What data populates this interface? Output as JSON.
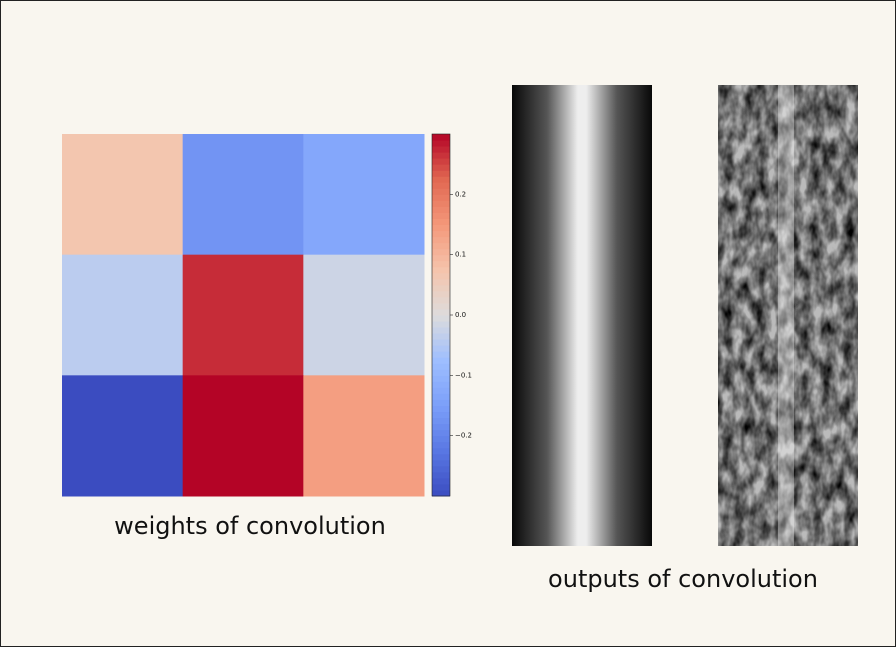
{
  "chart_data": {
    "type": "heatmap",
    "cmap": "coolwarm",
    "values": [
      [
        0.07,
        -0.17,
        -0.13
      ],
      [
        -0.04,
        0.27,
        -0.02
      ],
      [
        -0.3,
        0.3,
        0.14
      ]
    ],
    "clim": [
      -0.3,
      0.3
    ],
    "colorbar_ticks": [
      {
        "value": -0.2,
        "label": "−0.2"
      },
      {
        "value": -0.1,
        "label": "−0.1"
      },
      {
        "value": 0,
        "label": "0.0"
      },
      0.1,
      0.2
    ],
    "caption": "weights of convolution"
  },
  "outputs": {
    "caption": "outputs of convolution"
  }
}
